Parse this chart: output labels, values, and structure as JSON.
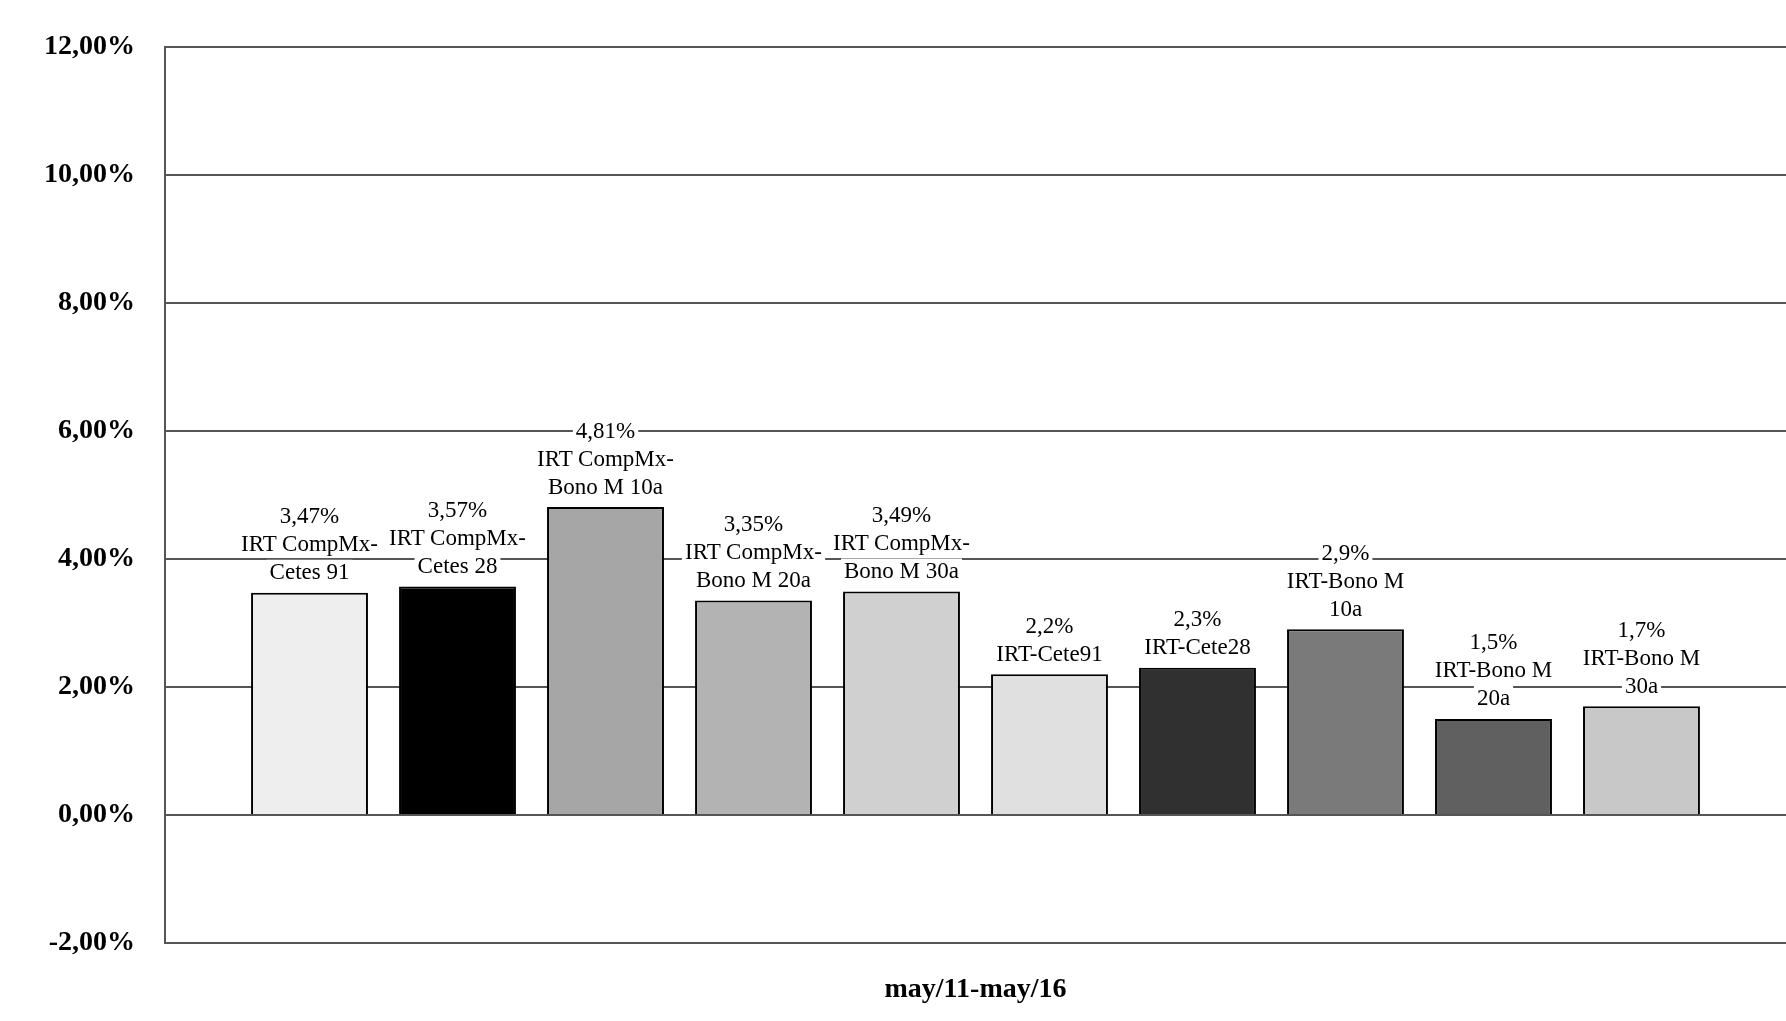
{
  "chart_data": {
    "type": "bar",
    "categories": [
      "may/11-may/16"
    ],
    "ylim": [
      -2,
      12
    ],
    "yticks": [
      {
        "value": -2,
        "label": "-2,00%"
      },
      {
        "value": 0,
        "label": "0,00%"
      },
      {
        "value": 2,
        "label": "2,00%"
      },
      {
        "value": 4,
        "label": "4,00%"
      },
      {
        "value": 6,
        "label": "6,00%"
      },
      {
        "value": 8,
        "label": "8,00%"
      },
      {
        "value": 10,
        "label": "10,00%"
      },
      {
        "value": 12,
        "label": "12,00%"
      }
    ],
    "grid": "y",
    "series": [
      {
        "name": "IRT CompMx-Cetes 91",
        "color": "#eeeeee",
        "values": [
          3.47
        ],
        "value_labels": [
          "3,47%"
        ]
      },
      {
        "name": "IRT CompMx-Cetes 28",
        "color": "#000000",
        "values": [
          3.57
        ],
        "value_labels": [
          "3,57%"
        ]
      },
      {
        "name": "IRT CompMx-Bono M 10a",
        "color": "#a6a6a6",
        "values": [
          4.81
        ],
        "value_labels": [
          "4,81%"
        ]
      },
      {
        "name": "IRT CompMx-Bono M 20a",
        "color": "#b3b3b3",
        "values": [
          3.35
        ],
        "value_labels": [
          "3,35%"
        ]
      },
      {
        "name": "IRT CompMx-Bono M 30a",
        "color": "#d0d0d0",
        "values": [
          3.49
        ],
        "value_labels": [
          "3,49%"
        ]
      },
      {
        "name": "IRT-Cete91",
        "color": "#e0e0e0",
        "values": [
          2.2
        ],
        "value_labels": [
          "2,2%"
        ]
      },
      {
        "name": "IRT-Cete28",
        "color": "#303030",
        "values": [
          2.3
        ],
        "value_labels": [
          "2,3%"
        ]
      },
      {
        "name": "IRT-Bono M 10a",
        "color": "#7a7a7a",
        "values": [
          2.9
        ],
        "value_labels": [
          "2,9%"
        ]
      },
      {
        "name": "IRT-Bono M 20a",
        "color": "#606060",
        "values": [
          1.5
        ],
        "value_labels": [
          "1,5%"
        ]
      },
      {
        "name": "IRT-Bono M 30a",
        "color": "#c8c8c8",
        "values": [
          1.7
        ],
        "value_labels": [
          "1,7%"
        ]
      }
    ]
  }
}
